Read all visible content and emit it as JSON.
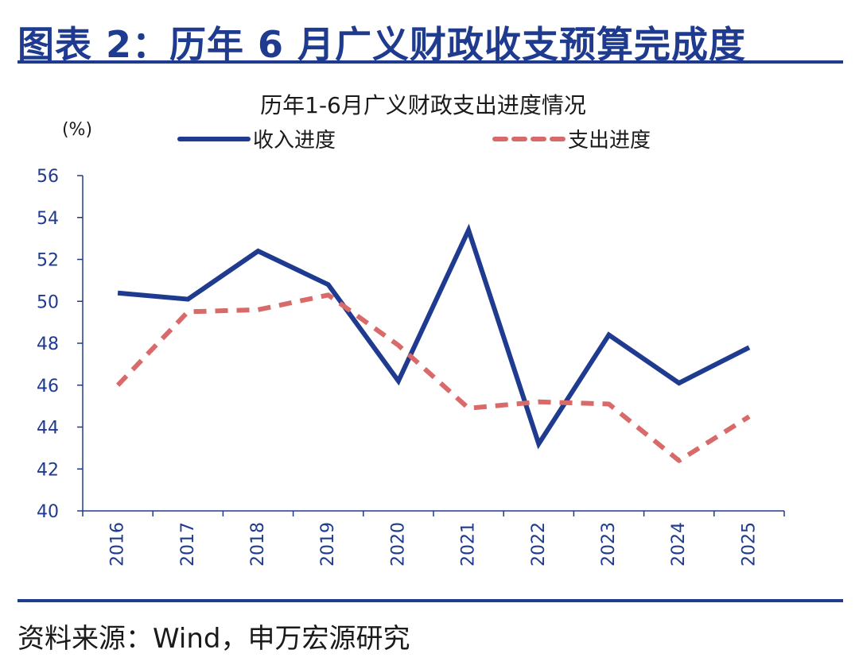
{
  "figure_title": "图表 2：历年 6 月广义财政收支预算完成度",
  "source_note": "资料来源：Wind，申万宏源研究",
  "colors": {
    "brand": "#1f3b8f",
    "series_income": "#1f3b8f",
    "series_expense": "#d96a6a"
  },
  "chart_data": {
    "type": "line",
    "title": "历年1-6月广义财政支出进度情况",
    "unit_label": "(%)",
    "x": [
      "2016",
      "2017",
      "2018",
      "2019",
      "2020",
      "2021",
      "2022",
      "2023",
      "2024",
      "2025"
    ],
    "ylim": [
      40,
      56
    ],
    "yticks": [
      40,
      42,
      44,
      46,
      48,
      50,
      52,
      54,
      56
    ],
    "grid": false,
    "legend_position": "top",
    "series": [
      {
        "name": "收入进度",
        "style": "solid",
        "color": "#1f3b8f",
        "values": [
          50.4,
          50.1,
          52.4,
          50.8,
          46.2,
          53.4,
          43.2,
          48.4,
          46.1,
          47.8
        ]
      },
      {
        "name": "支出进度",
        "style": "dashed",
        "color": "#d96a6a",
        "values": [
          46.0,
          49.5,
          49.6,
          50.3,
          47.9,
          44.9,
          45.2,
          45.1,
          42.4,
          44.5
        ]
      }
    ]
  }
}
